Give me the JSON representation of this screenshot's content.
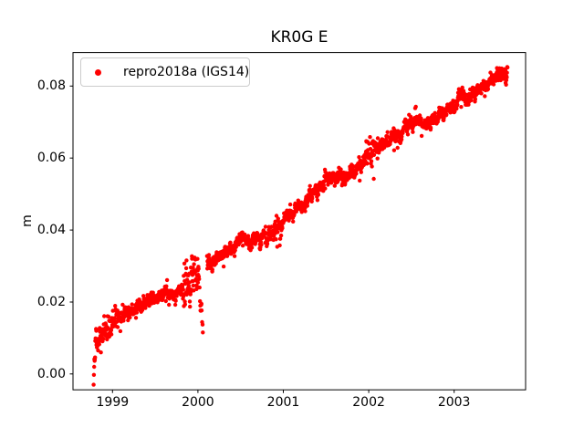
{
  "figure": {
    "background_color": "#ffffff",
    "spine_color": "#000000",
    "tick_label_color": "#000000"
  },
  "legend": {
    "label": "repro2018a (IGS14)",
    "marker_color": "#ff0000",
    "border_color": "#cccccc",
    "location": "upper left"
  },
  "chart_data": {
    "type": "scatter",
    "title": "KR0G E",
    "xlabel": "",
    "ylabel": "m",
    "grid": false,
    "xlim": [
      1998.537,
      2003.837
    ],
    "ylim": [
      -0.0044,
      0.0893
    ],
    "xticks": [
      1999,
      2000,
      2001,
      2002,
      2003
    ],
    "yticks": [
      0.0,
      0.02,
      0.04,
      0.06,
      0.08
    ],
    "ytick_decimals": 2,
    "series": [
      {
        "name": "repro2018a (IGS14)",
        "color": "#ff0000",
        "marker": "dot",
        "sampling": "daily",
        "t_start": 1998.779,
        "t_end": 2003.625,
        "trend_knots": [
          [
            1998.779,
            0.0095
          ],
          [
            1999.0,
            0.0145
          ],
          [
            1999.5,
            0.0198
          ],
          [
            2000.0,
            0.0278
          ],
          [
            2000.5,
            0.036
          ],
          [
            2001.0,
            0.0418
          ],
          [
            2001.5,
            0.0528
          ],
          [
            2002.0,
            0.0605
          ],
          [
            2002.5,
            0.0689
          ],
          [
            2003.0,
            0.0749
          ],
          [
            2003.625,
            0.0834
          ]
        ],
        "noise_sigma": 0.0007,
        "seasonal_amplitude": 0.0009,
        "anomalies": [
          {
            "type": "ramp_start",
            "t_start": 1998.779,
            "t_end": 1998.8,
            "min_value": 0.0
          },
          {
            "type": "spread",
            "t_start": 1998.779,
            "t_end": 1999.12,
            "extra_sigma": 0.0016
          },
          {
            "type": "spread",
            "t_start": 1999.82,
            "t_end": 1999.995,
            "extra_sigma": 0.0028
          },
          {
            "type": "dip",
            "t_start": 2000.005,
            "t_end": 2000.058,
            "depth": 0.0185
          },
          {
            "type": "gap",
            "t_start": 2000.058,
            "t_end": 2000.105
          },
          {
            "type": "spread",
            "t_start": 2000.9,
            "t_end": 2000.98,
            "extra_sigma": 0.0018
          },
          {
            "type": "spread",
            "t_start": 2001.97,
            "t_end": 2002.06,
            "extra_sigma": 0.0022
          }
        ]
      }
    ]
  }
}
